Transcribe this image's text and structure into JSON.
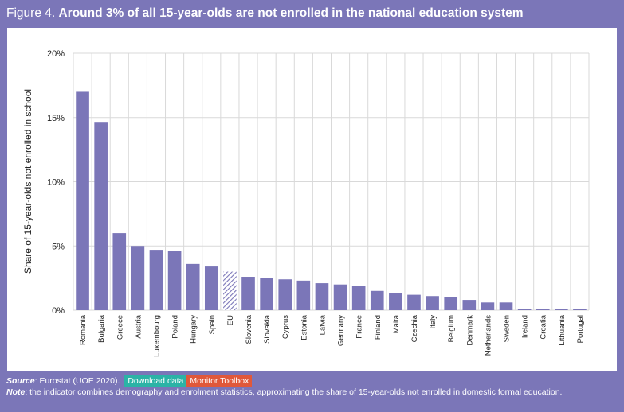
{
  "figure": {
    "label": "Figure 4.",
    "title": "Around 3% of all 15-year-olds are not enrolled in the national education system"
  },
  "colors": {
    "bar": "#7b76b8",
    "eu_hatch": "#7b76b8",
    "grid": "#d9d9d9",
    "background": "#7b76b8"
  },
  "chart_data": {
    "type": "bar",
    "title": "Around 3% of all 15-year-olds are not enrolled in the national education system",
    "xlabel": "",
    "ylabel": "Share of 15-year-olds not enrolled in school",
    "ylim": [
      0,
      20
    ],
    "yticks": [
      0,
      5,
      10,
      15,
      20
    ],
    "ytick_labels": [
      "0%",
      "5%",
      "10%",
      "15%",
      "20%"
    ],
    "grid": true,
    "highlight": "EU",
    "categories": [
      "Romania",
      "Bulgaria",
      "Greece",
      "Austria",
      "Luxembourg",
      "Poland",
      "Hungary",
      "Spain",
      "EU",
      "Slovenia",
      "Slovakia",
      "Cyprus",
      "Estonia",
      "Latvia",
      "Germany",
      "France",
      "Finland",
      "Malta",
      "Czechia",
      "Italy",
      "Belgium",
      "Denmark",
      "Netherlands",
      "Sweden",
      "Ireland",
      "Croatia",
      "Lithuania",
      "Portugal"
    ],
    "values": [
      17.0,
      14.6,
      6.0,
      5.0,
      4.7,
      4.6,
      3.6,
      3.4,
      3.0,
      2.6,
      2.5,
      2.4,
      2.3,
      2.1,
      2.0,
      1.9,
      1.5,
      1.3,
      1.2,
      1.1,
      1.0,
      0.8,
      0.6,
      0.6,
      0.1,
      0.1,
      0.1,
      0.1
    ]
  },
  "footer": {
    "source_label": "Source",
    "source_text": ": Eurostat (UOE 2020).",
    "download_label": "Download data",
    "toolbox_label": "Monitor Toolbox",
    "note_label": "Note",
    "note_text": ": the indicator combines demography and enrolment statistics, approximating the share of 15-year-olds not enrolled in domestic formal education."
  }
}
